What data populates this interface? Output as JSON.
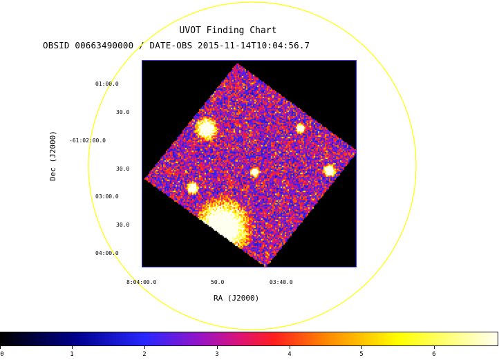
{
  "chart": {
    "title": "UVOT Finding Chart",
    "subtitle": "OBSID 00663490000 / DATE-OBS 2015-11-14T10:04:56.7",
    "y_axis_label": "Dec (J2000)",
    "x_axis_label": "RA (J2000)",
    "dec_ticks": [
      "01:00.0",
      "30.0",
      "-61:02:00.0",
      "30.0",
      "03:00.0",
      "30.0",
      "04:00.0"
    ],
    "ra_ticks": [
      "8:04:00.0",
      "50.0",
      "03:40.0"
    ],
    "colorbar_ticks": [
      "0",
      "1",
      "2",
      "3",
      "4",
      "5",
      "6"
    ]
  },
  "colors": {
    "overlay_circle": "#ffff00",
    "frame_border": "#2a2aff",
    "background": "#000000"
  }
}
